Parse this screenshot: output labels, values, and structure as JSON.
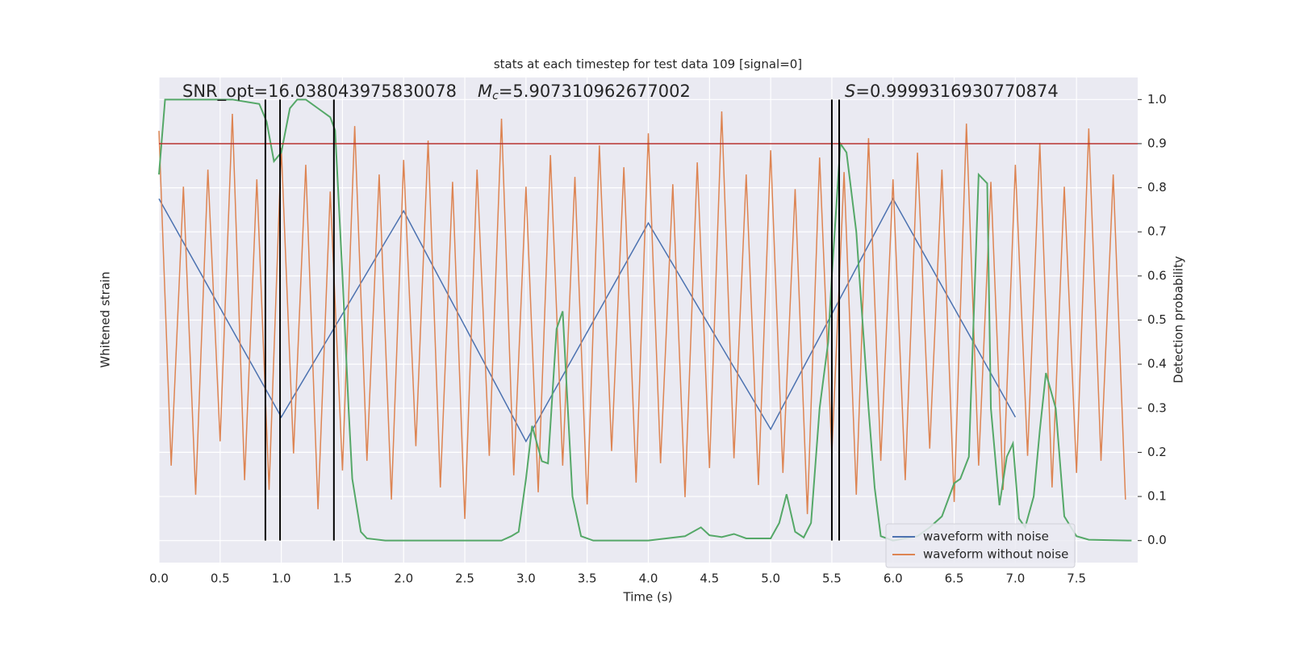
{
  "chart_data": {
    "type": "line",
    "title": "stats at each timestep for test data 109 [signal=0]",
    "xlabel": "Time (s)",
    "ylabel": "Whitened strain",
    "y2label": "Detection probability",
    "annotations": [
      {
        "text": "SNR_opt=16.038043975830078"
      },
      {
        "symbol": "M",
        "subscript": "c",
        "text": "=5.907310962677002"
      },
      {
        "symbol": "S",
        "text": "=0.9999316930770874"
      }
    ],
    "xlim": [
      0,
      8
    ],
    "xticks": [
      {
        "value": 0,
        "label": "0.0"
      },
      0.5,
      {
        "value": 1,
        "label": "1.0"
      },
      1.5,
      {
        "value": 2,
        "label": "2.0"
      },
      2.5,
      {
        "value": 3,
        "label": "3.0"
      },
      3.5,
      {
        "value": 4,
        "label": "4.0"
      },
      4.5,
      {
        "value": 5,
        "label": "5.0"
      },
      5.5,
      {
        "value": 6,
        "label": "6.0"
      },
      6.5,
      {
        "value": 7,
        "label": "7.0"
      },
      7.5
    ],
    "ylim": [
      -1,
      1
    ],
    "y2lim": [
      -0.05,
      1.05
    ],
    "y2ticks": [
      {
        "value": 0,
        "label": "0.0"
      },
      0.1,
      0.2,
      0.3,
      0.4,
      0.5,
      0.6,
      0.7,
      0.8,
      0.9,
      {
        "value": 1,
        "label": "1.0"
      }
    ],
    "grid": true,
    "legend": "lower right",
    "series": [
      {
        "name": "waveform with noise",
        "color": "#4c72b0",
        "axis": "y",
        "x": [
          0,
          1,
          2,
          3,
          4,
          5,
          6,
          7
        ],
        "values": [
          0.5,
          -0.4,
          0.45,
          -0.5,
          0.4,
          -0.45,
          0.5,
          -0.4
        ]
      },
      {
        "name": "waveform without noise",
        "color": "#dd8452",
        "axis": "y",
        "x": [
          0,
          0.1,
          0.2,
          0.3,
          0.4,
          0.5,
          0.6,
          0.7,
          0.8,
          0.9,
          1,
          1.1,
          1.2,
          1.3,
          1.4,
          1.5,
          1.6,
          1.7,
          1.8,
          1.9,
          2,
          2.1,
          2.2,
          2.3,
          2.4,
          2.5,
          2.6,
          2.7,
          2.8,
          2.9,
          3,
          3.1,
          3.2,
          3.3,
          3.4,
          3.5,
          3.6,
          3.7,
          3.8,
          3.9,
          4,
          4.1,
          4.2,
          4.3,
          4.4,
          4.5,
          4.6,
          4.7,
          4.8,
          4.9,
          5,
          5.1,
          5.2,
          5.3,
          5.4,
          5.5,
          5.6,
          5.7,
          5.8,
          5.9,
          6,
          6.1,
          6.2,
          6.3,
          6.4,
          6.5,
          6.6,
          6.7,
          6.8,
          6.9,
          7,
          7.1,
          7.2,
          7.3,
          7.4,
          7.5,
          7.6,
          7.7,
          7.8,
          7.9
        ],
        "values": [
          0.78,
          -0.6,
          0.55,
          -0.72,
          0.62,
          -0.5,
          0.85,
          -0.66,
          0.58,
          -0.7,
          0.71,
          -0.55,
          0.64,
          -0.78,
          0.53,
          -0.62,
          0.8,
          -0.58,
          0.6,
          -0.74,
          0.66,
          -0.52,
          0.74,
          -0.69,
          0.57,
          -0.82,
          0.62,
          -0.56,
          0.83,
          -0.64,
          0.55,
          -0.71,
          0.68,
          -0.6,
          0.59,
          -0.76,
          0.72,
          -0.54,
          0.63,
          -0.67,
          0.77,
          -0.59,
          0.56,
          -0.73,
          0.65,
          -0.61,
          0.86,
          -0.57,
          0.6,
          -0.68,
          0.7,
          -0.63,
          0.54,
          -0.8,
          0.67,
          -0.55,
          0.61,
          -0.72,
          0.75,
          -0.58,
          0.58,
          -0.66,
          0.69,
          -0.53,
          0.62,
          -0.75,
          0.81,
          -0.6,
          0.57,
          -0.7,
          0.64,
          -0.56,
          0.73,
          -0.69,
          0.55,
          -0.63,
          0.79,
          -0.58,
          0.6,
          -0.74
        ]
      },
      {
        "color": "#55a868",
        "axis": "y2",
        "x": [
          0,
          0.05,
          0.3,
          0.6,
          0.82,
          0.88,
          0.94,
          1,
          1.07,
          1.13,
          1.2,
          1.3,
          1.4,
          1.44,
          1.5,
          1.55,
          1.58,
          1.65,
          1.7,
          1.85,
          2.2,
          2.5,
          2.8,
          2.88,
          2.94,
          3,
          3.05,
          3.13,
          3.18,
          3.25,
          3.3,
          3.38,
          3.45,
          3.55,
          4,
          4.3,
          4.43,
          4.5,
          4.6,
          4.7,
          4.8,
          5,
          5.07,
          5.13,
          5.2,
          5.27,
          5.33,
          5.4,
          5.47,
          5.5,
          5.57,
          5.62,
          5.7,
          5.8,
          5.85,
          5.9,
          6,
          6.2,
          6.3,
          6.4,
          6.5,
          6.55,
          6.62,
          6.7,
          6.77,
          6.8,
          6.87,
          6.93,
          6.98,
          7.03,
          7.08,
          7.15,
          7.2,
          7.25,
          7.33,
          7.4,
          7.5,
          7.6,
          7.95
        ],
        "values": [
          0.83,
          1.0,
          1.0,
          1.0,
          0.99,
          0.95,
          0.86,
          0.88,
          0.98,
          1.0,
          1.0,
          0.98,
          0.96,
          0.93,
          0.6,
          0.3,
          0.14,
          0.02,
          0.005,
          0.0,
          0.0,
          0.0,
          0.0,
          0.01,
          0.02,
          0.14,
          0.26,
          0.18,
          0.175,
          0.48,
          0.52,
          0.1,
          0.01,
          0.0,
          0.0,
          0.01,
          0.03,
          0.012,
          0.008,
          0.015,
          0.005,
          0.005,
          0.04,
          0.105,
          0.02,
          0.007,
          0.04,
          0.3,
          0.45,
          0.6,
          0.9,
          0.88,
          0.7,
          0.3,
          0.12,
          0.01,
          0.0,
          0.01,
          0.03,
          0.055,
          0.13,
          0.14,
          0.19,
          0.83,
          0.81,
          0.3,
          0.08,
          0.19,
          0.22,
          0.05,
          0.03,
          0.1,
          0.25,
          0.38,
          0.3,
          0.055,
          0.01,
          0.002,
          0.0
        ]
      }
    ],
    "hlines": [
      {
        "value": 0.9,
        "axis": "y2",
        "color": "#b83230"
      }
    ],
    "vlines": {
      "x": [
        0.87,
        0.99,
        1.43,
        5.5,
        5.56
      ],
      "y2range": [
        0,
        1
      ],
      "color": "#000000"
    }
  }
}
